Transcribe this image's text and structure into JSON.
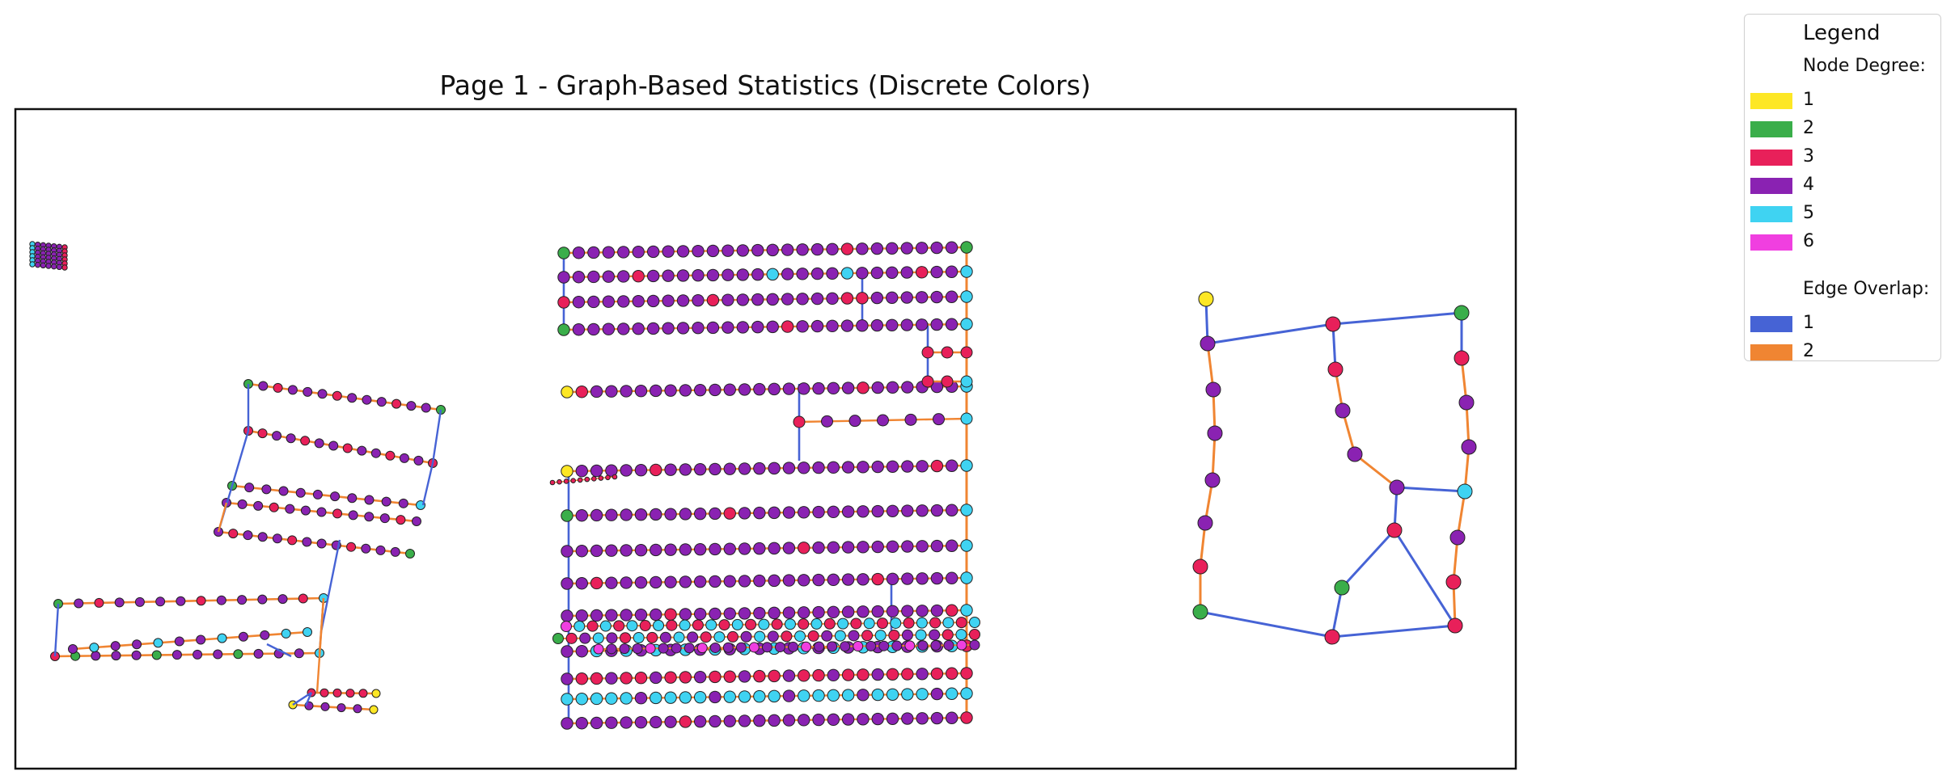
{
  "title": "Page 1 - Graph-Based Statistics (Discrete Colors)",
  "legend": {
    "title": "Legend",
    "node_section": "Node Degree:",
    "node_items": [
      {
        "label": "1",
        "color": "#FDE725"
      },
      {
        "label": "2",
        "color": "#3AAE4A"
      },
      {
        "label": "3",
        "color": "#E8205A"
      },
      {
        "label": "4",
        "color": "#8A22B2"
      },
      {
        "label": "5",
        "color": "#3FD3F2"
      },
      {
        "label": "6",
        "color": "#F03FE0"
      }
    ],
    "edge_section": "Edge Overlap:",
    "edge_items": [
      {
        "label": "1",
        "color": "#4663D5"
      },
      {
        "label": "2",
        "color": "#F08532"
      }
    ]
  }
}
